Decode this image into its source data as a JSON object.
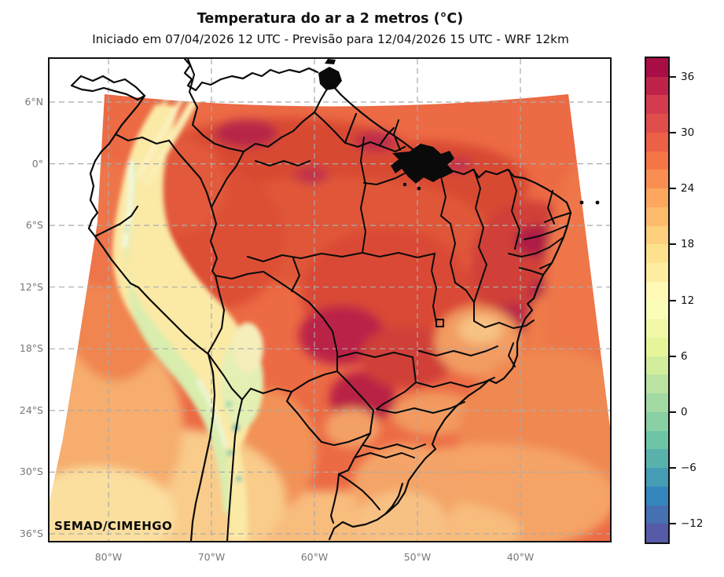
{
  "title": "Temperatura do ar a 2 metros (°C)",
  "subtitle": "Iniciado em 07/04/2026 12 UTC - Previsão para 12/04/2026 15 UTC - WRF 12km",
  "credit": "SEMAD/CIMEHGO",
  "map": {
    "y_axis_labels": [
      "6°N",
      "0°",
      "6°S",
      "12°S",
      "18°S",
      "24°S",
      "30°S",
      "36°S"
    ],
    "x_axis_labels": [
      "80°W",
      "70°W",
      "60°W",
      "50°W",
      "40°W"
    ],
    "region": "South America / Brazil WRF 12km domain",
    "grid_style": "dashed"
  },
  "colorbar": {
    "vmin": -14,
    "vmax": 38,
    "band_step": 2,
    "tick_values": [
      36,
      30,
      24,
      18,
      12,
      6,
      0,
      -6,
      -12
    ],
    "tick_labels": [
      "36",
      "30",
      "24",
      "18",
      "12",
      "6",
      "0",
      "−6",
      "−12"
    ],
    "colormap": "Spectral_r (top=hot)",
    "anchors_top_to_bottom": [
      "#9e0142",
      "#d53e4f",
      "#f46d43",
      "#fdae61",
      "#fee08b",
      "#ffffbf",
      "#e6f598",
      "#abdda4",
      "#66c2a5",
      "#3288bd",
      "#5e4fa2"
    ]
  }
}
